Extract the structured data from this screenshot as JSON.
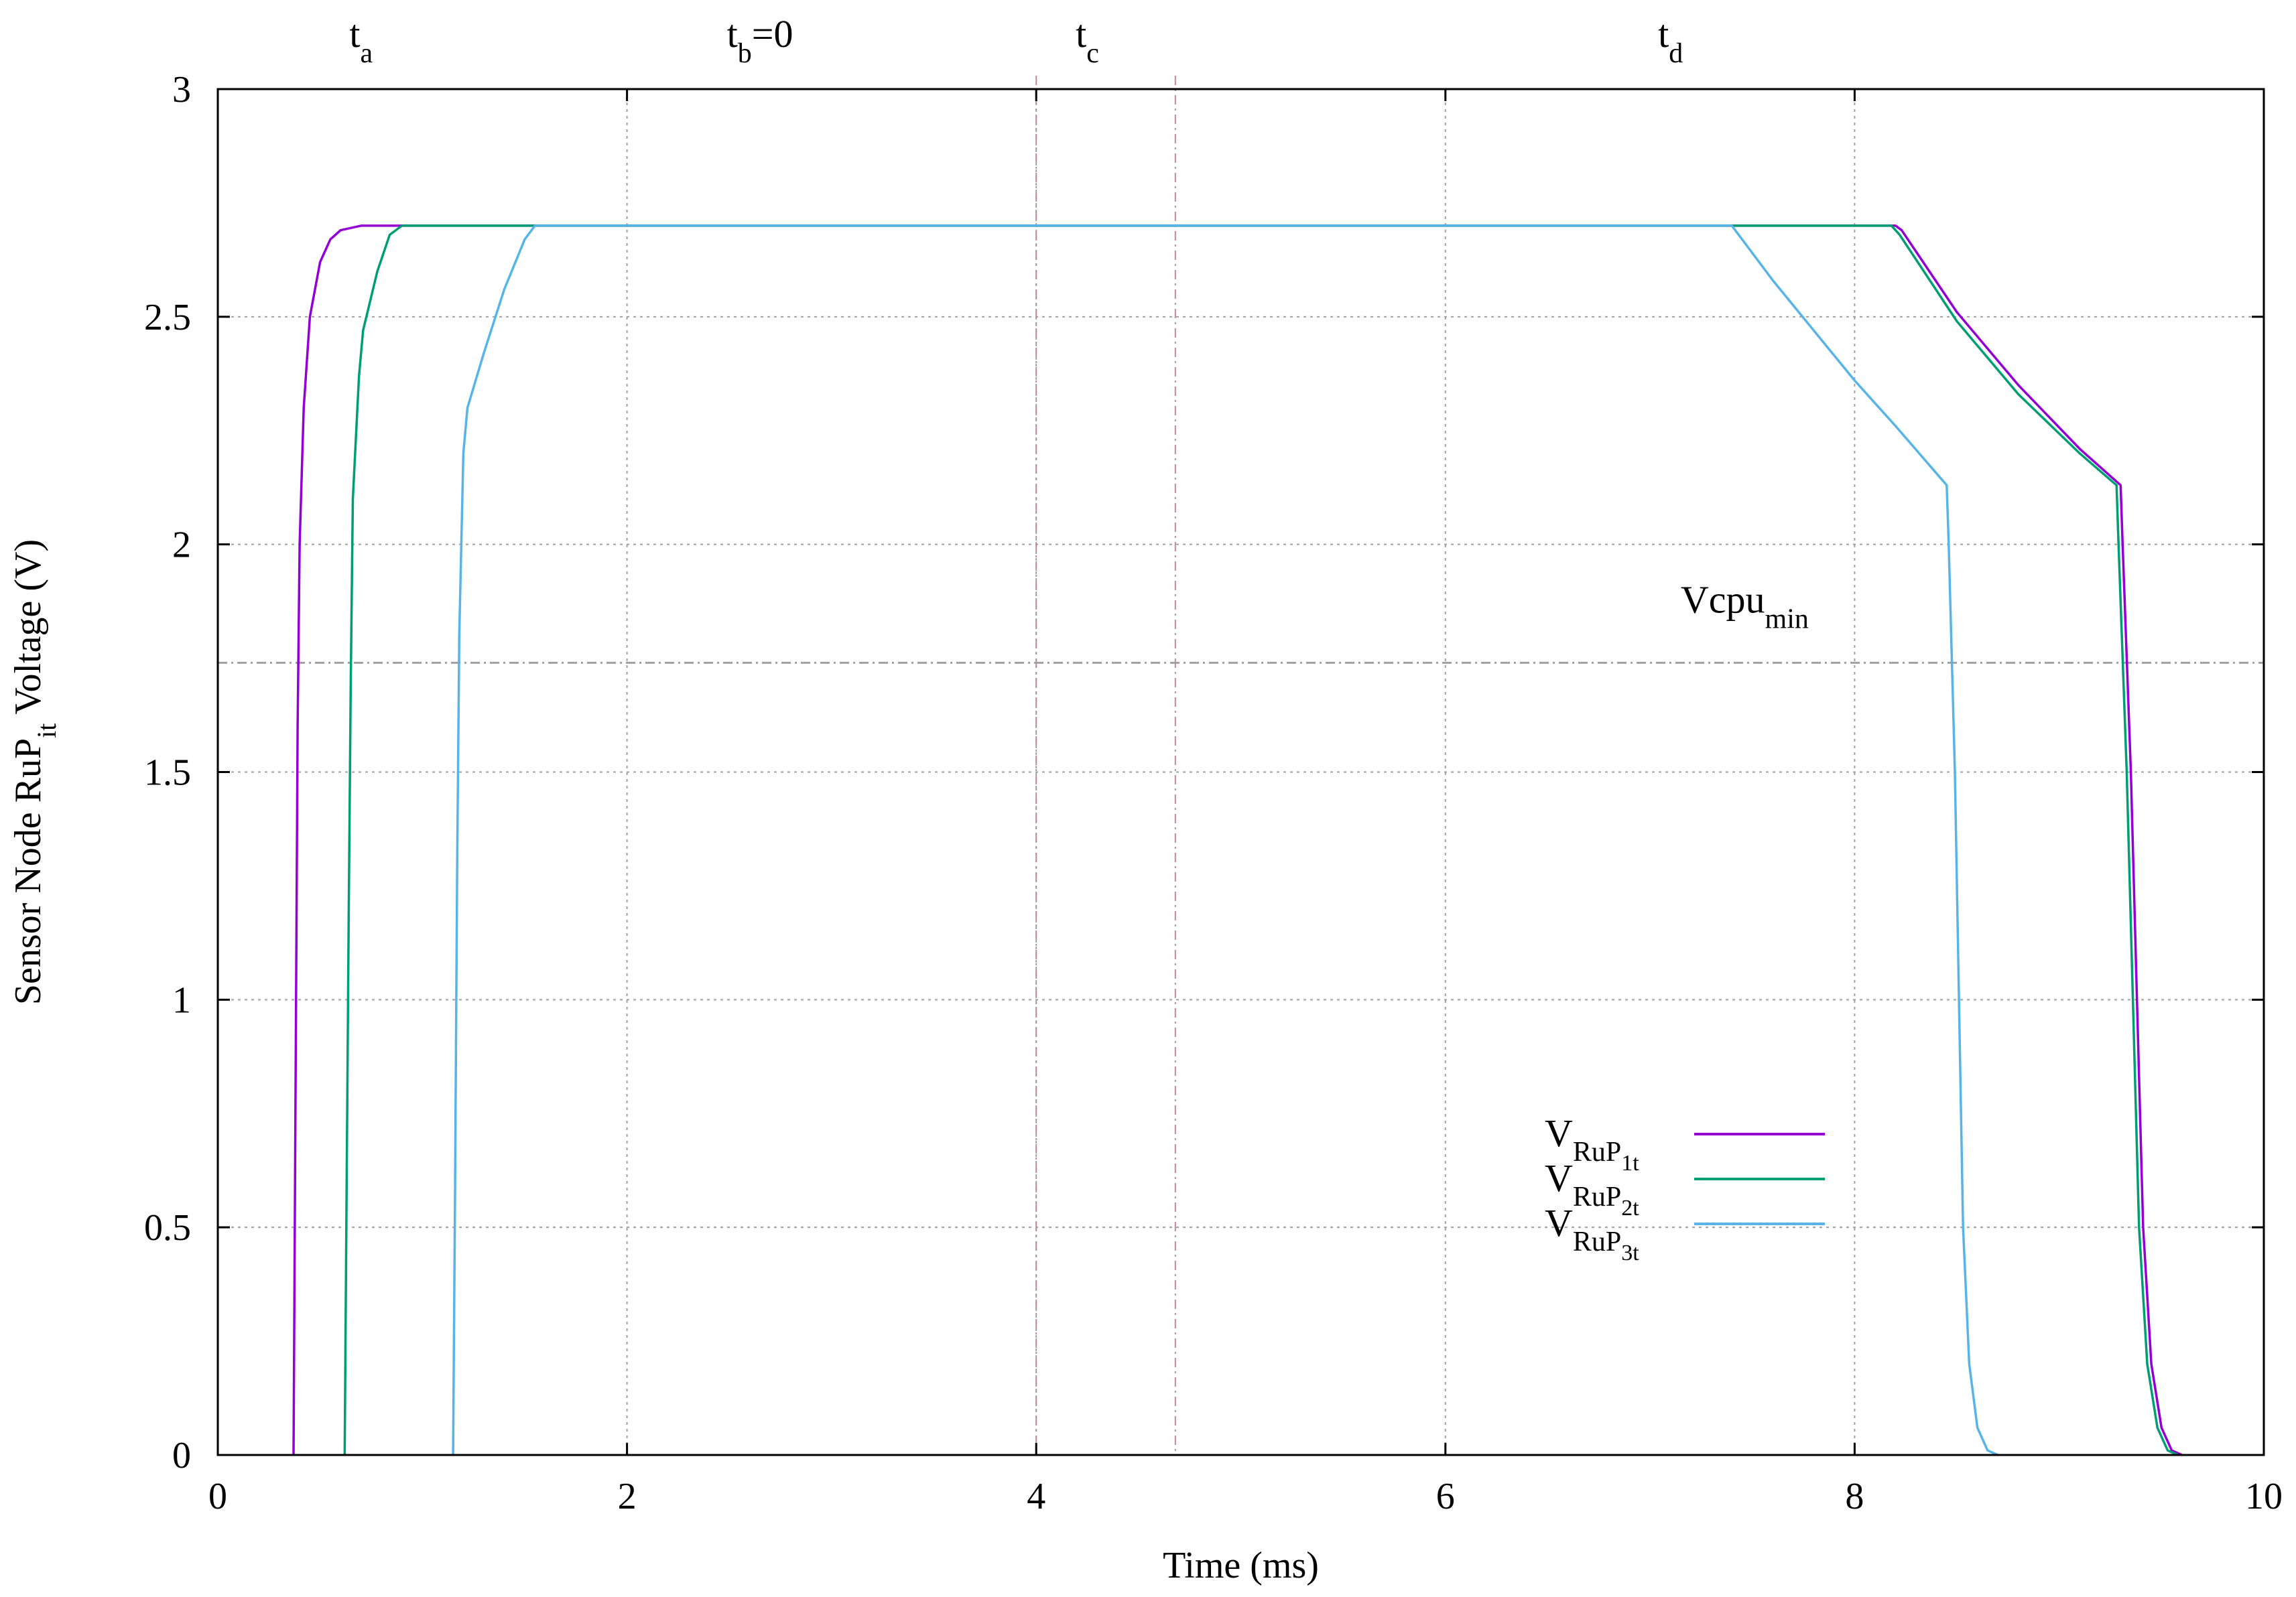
{
  "chart_data": {
    "type": "line",
    "title": "",
    "xlabel": "Time (ms)",
    "ylabel": {
      "main": "Sensor Node RuP",
      "sub": "it",
      "tail": " Voltage (V)"
    },
    "xlim": [
      0,
      10
    ],
    "ylim": [
      0,
      3
    ],
    "xticks": [
      0,
      2,
      4,
      6,
      8,
      10
    ],
    "xtick_labels": [
      "0",
      "2",
      "4",
      "6",
      "8",
      "10"
    ],
    "yticks": [
      0,
      0.5,
      1,
      1.5,
      2,
      2.5,
      3
    ],
    "ytick_labels": [
      "0",
      "0.5",
      "1",
      "1.5",
      "2",
      "2.5",
      "3"
    ],
    "grid": true,
    "legend_position": "bottom-right",
    "top_labels": [
      {
        "main": "t",
        "sub": "a",
        "tail": "",
        "x": 0.7
      },
      {
        "main": "t",
        "sub": "b",
        "tail": "=0",
        "x": 2.65
      },
      {
        "main": "t",
        "sub": "c",
        "tail": "",
        "x": 4.25
      },
      {
        "main": "t",
        "sub": "d",
        "tail": "",
        "x": 7.1
      }
    ],
    "vertical_markers": [
      4.0,
      4.68
    ],
    "threshold": {
      "main": "Vcpu",
      "sub": "min",
      "y": 1.74,
      "label_x": 7.15,
      "label_y": 1.85
    },
    "series": [
      {
        "name": {
          "main": "V",
          "sub": "RuP",
          "subsub": "1t"
        },
        "color": "#9400d3",
        "points": [
          [
            0.37,
            0
          ],
          [
            0.38,
            0.8
          ],
          [
            0.39,
            1.6
          ],
          [
            0.4,
            2.0
          ],
          [
            0.42,
            2.3
          ],
          [
            0.45,
            2.5
          ],
          [
            0.5,
            2.62
          ],
          [
            0.55,
            2.67
          ],
          [
            0.6,
            2.69
          ],
          [
            0.7,
            2.7
          ],
          [
            6.5,
            2.7
          ],
          [
            8.2,
            2.7
          ],
          [
            8.23,
            2.69
          ],
          [
            8.5,
            2.51
          ],
          [
            8.8,
            2.35
          ],
          [
            9.1,
            2.21
          ],
          [
            9.3,
            2.13
          ],
          [
            9.31,
            2.0
          ],
          [
            9.35,
            1.5
          ],
          [
            9.38,
            1.0
          ],
          [
            9.41,
            0.5
          ],
          [
            9.45,
            0.2
          ],
          [
            9.5,
            0.06
          ],
          [
            9.55,
            0.01
          ],
          [
            9.6,
            0
          ]
        ]
      },
      {
        "name": {
          "main": "V",
          "sub": "RuP",
          "subsub": "2t"
        },
        "color": "#009e73",
        "points": [
          [
            0.62,
            0
          ],
          [
            0.63,
            0.6
          ],
          [
            0.64,
            1.2
          ],
          [
            0.65,
            1.7
          ],
          [
            0.66,
            2.1
          ],
          [
            0.69,
            2.37
          ],
          [
            0.71,
            2.47
          ],
          [
            0.78,
            2.6
          ],
          [
            0.84,
            2.68
          ],
          [
            0.9,
            2.7
          ],
          [
            6.5,
            2.7
          ],
          [
            8.18,
            2.7
          ],
          [
            8.22,
            2.68
          ],
          [
            8.5,
            2.49
          ],
          [
            8.8,
            2.33
          ],
          [
            9.1,
            2.2
          ],
          [
            9.28,
            2.13
          ],
          [
            9.29,
            2.0
          ],
          [
            9.33,
            1.5
          ],
          [
            9.36,
            1.0
          ],
          [
            9.39,
            0.5
          ],
          [
            9.43,
            0.2
          ],
          [
            9.48,
            0.06
          ],
          [
            9.53,
            0.01
          ],
          [
            9.58,
            0
          ]
        ]
      },
      {
        "name": {
          "main": "V",
          "sub": "RuP",
          "subsub": "3t"
        },
        "color": "#56b4e9",
        "points": [
          [
            1.15,
            0
          ],
          [
            1.16,
            0.6
          ],
          [
            1.17,
            1.3
          ],
          [
            1.18,
            1.8
          ],
          [
            1.2,
            2.2
          ],
          [
            1.22,
            2.3
          ],
          [
            1.3,
            2.42
          ],
          [
            1.4,
            2.56
          ],
          [
            1.5,
            2.67
          ],
          [
            1.55,
            2.7
          ],
          [
            6.5,
            2.7
          ],
          [
            7.4,
            2.7
          ],
          [
            7.6,
            2.58
          ],
          [
            7.8,
            2.47
          ],
          [
            8.0,
            2.36
          ],
          [
            8.2,
            2.26
          ],
          [
            8.45,
            2.13
          ],
          [
            8.46,
            2.0
          ],
          [
            8.49,
            1.5
          ],
          [
            8.51,
            1.0
          ],
          [
            8.53,
            0.5
          ],
          [
            8.56,
            0.2
          ],
          [
            8.6,
            0.06
          ],
          [
            8.65,
            0.01
          ],
          [
            8.7,
            0
          ]
        ]
      }
    ]
  }
}
